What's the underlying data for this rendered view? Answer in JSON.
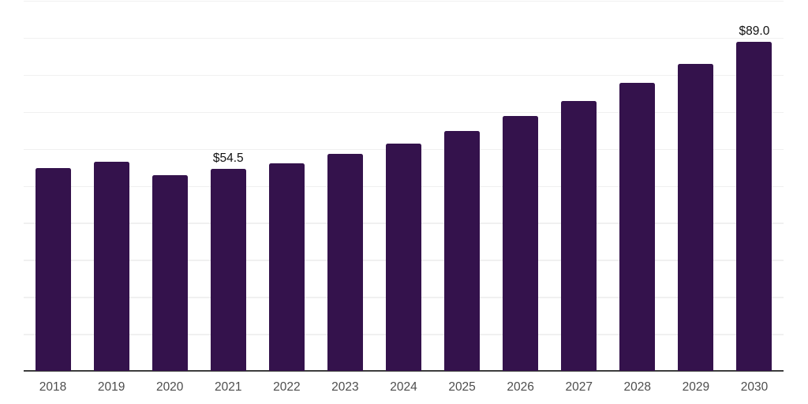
{
  "chart_data": {
    "type": "bar",
    "title": "",
    "xlabel": "",
    "ylabel": "",
    "categories": [
      "2018",
      "2019",
      "2020",
      "2021",
      "2022",
      "2023",
      "2024",
      "2025",
      "2026",
      "2027",
      "2028",
      "2029",
      "2030"
    ],
    "values": [
      54.9,
      56.4,
      52.9,
      54.5,
      56.0,
      58.6,
      61.5,
      64.9,
      68.8,
      72.9,
      77.8,
      83.0,
      89.0
    ],
    "data_labels": [
      {
        "category": "2021",
        "text": "$54.5"
      },
      {
        "category": "2030",
        "text": "$89.0"
      }
    ],
    "value_prefix": "$",
    "ylim": [
      0,
      100
    ],
    "grid_step": 10,
    "grid": "horizontal",
    "y_tick_labels": "none",
    "legend": "none",
    "colors": {
      "bar": "#34124c",
      "gridline": "#f0f0f0",
      "axis_line": "#3d3d3d",
      "tick_label": "#4d4d4d",
      "data_label": "#111111",
      "background": "#ffffff"
    }
  }
}
